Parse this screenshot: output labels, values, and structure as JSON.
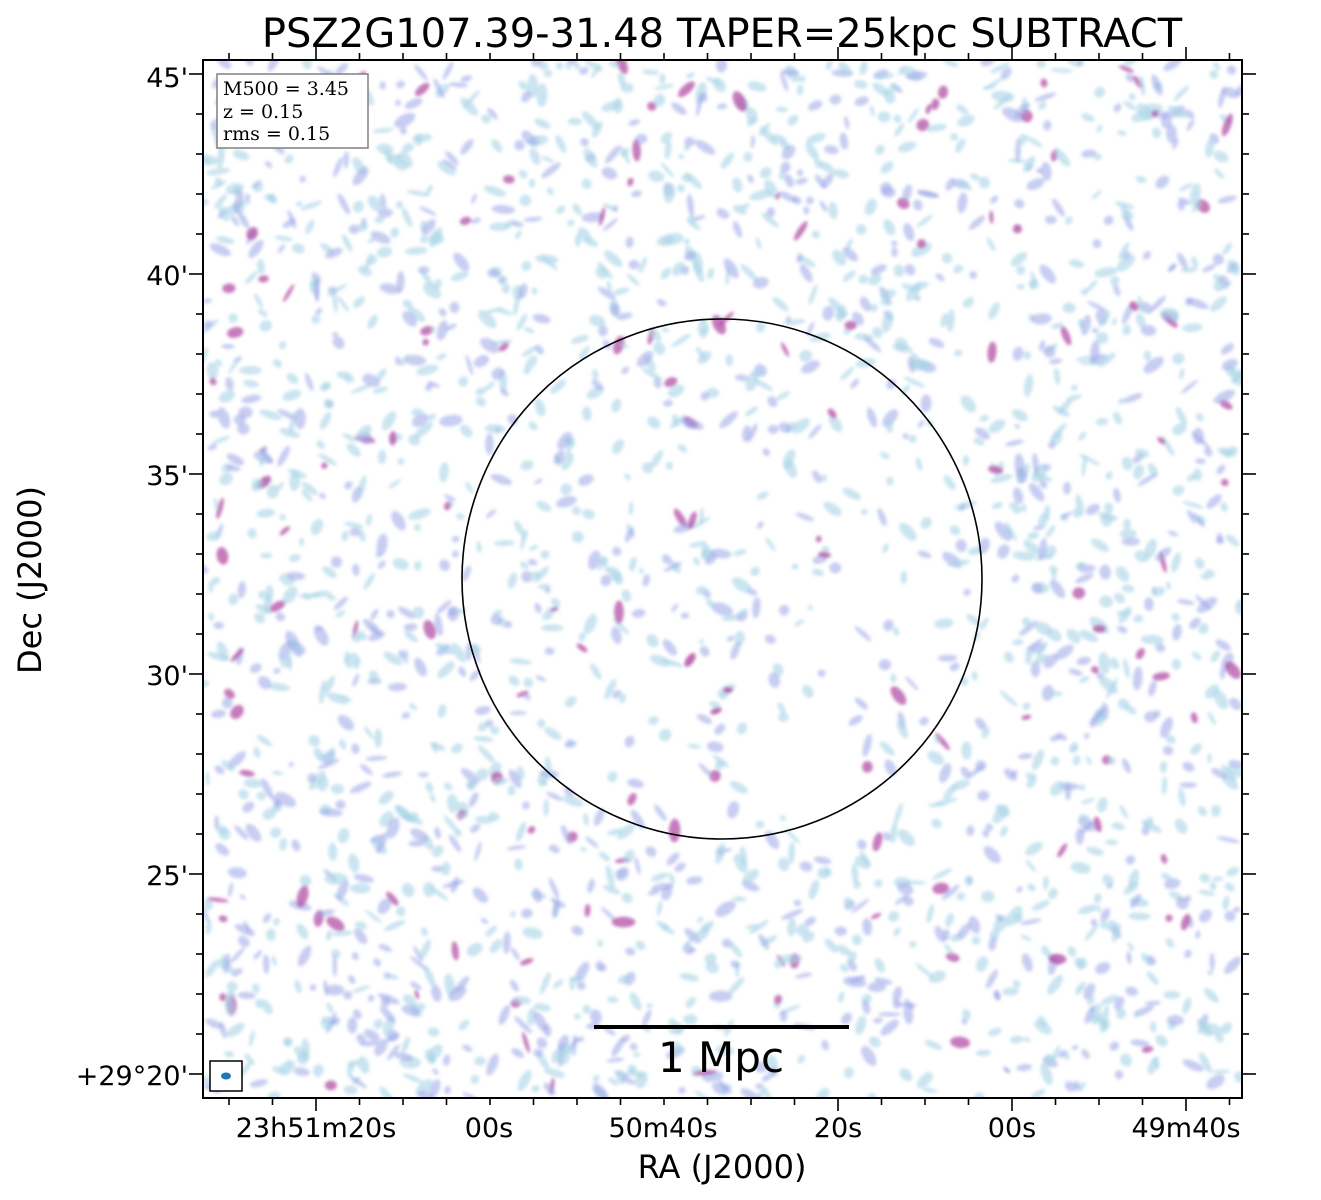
{
  "chart_data": {
    "type": "heatmap",
    "title": "PSZ2G107.39-31.48 TAPER=25kpc SUBTRACT",
    "xlabel": "RA (J2000)",
    "ylabel": "Dec (J2000)",
    "x_tick_labels": [
      "23h51m20s",
      "00s",
      "50m40s",
      "20s",
      "00s",
      "49m40s"
    ],
    "y_tick_labels": [
      "+29°20'",
      "25'",
      "30'",
      "35'",
      "40'",
      "45'"
    ],
    "info_box": [
      "M500 = 3.45",
      "z = 0.15",
      "rms = 0.15"
    ],
    "scale_bar_label": "1 Mpc",
    "colors": {
      "low": "#a9d3e6",
      "mid": "#9aa6e8",
      "high": "#b34fa6",
      "beam": "#1f77b4",
      "axes": "#000000"
    }
  }
}
